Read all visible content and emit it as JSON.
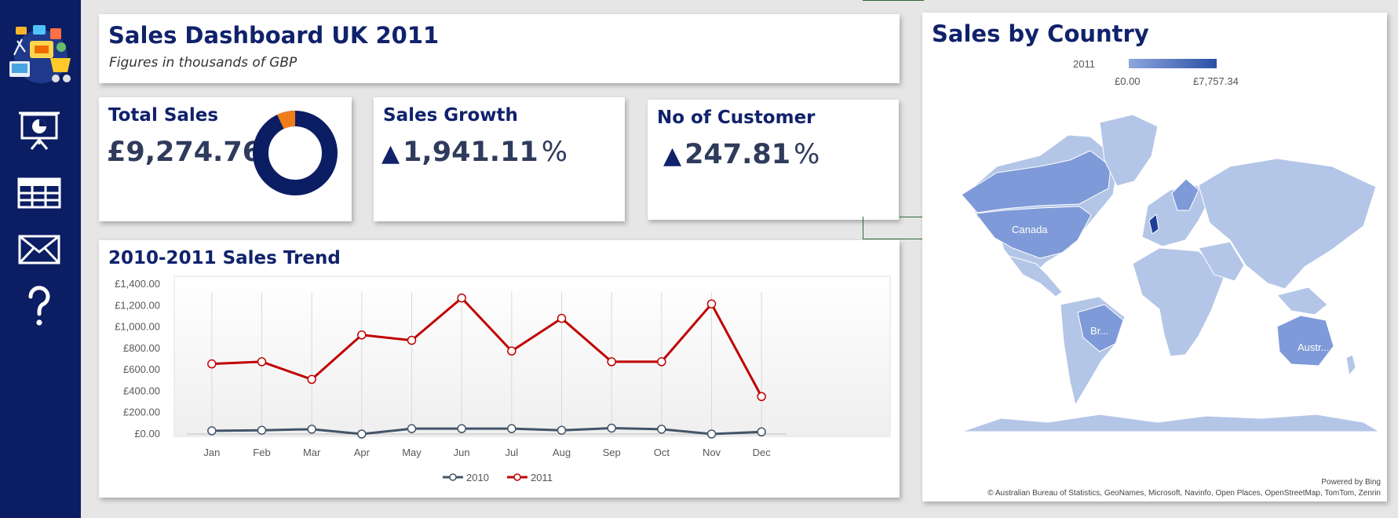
{
  "sidebar": {
    "logo_icon": "sales-illustration-icon",
    "items": [
      {
        "icon": "presentation-chart-icon"
      },
      {
        "icon": "table-grid-icon"
      },
      {
        "icon": "envelope-icon"
      },
      {
        "icon": "question-mark-icon"
      }
    ]
  },
  "header": {
    "title": "Sales Dashboard UK 2011",
    "subtitle": "Figures in thousands of GBP"
  },
  "kpis": {
    "total_sales": {
      "label": "Total Sales",
      "value": "£9,274.76",
      "donut_share": 0.07,
      "colors": {
        "main": "#0b1d63",
        "highlight": "#f07c1a"
      }
    },
    "sales_growth": {
      "label": "Sales Growth",
      "arrow": "▲",
      "value": "1,941.11",
      "suffix": "%"
    },
    "customers": {
      "label": "No of Customer",
      "arrow": "▲",
      "value": "247.81",
      "suffix": "%"
    }
  },
  "trend": {
    "title": "2010-2011 Sales Trend"
  },
  "chart_data": {
    "type": "line",
    "title": "2010-2011 Sales Trend",
    "xlabel": "",
    "ylabel": "",
    "categories": [
      "Jan",
      "Feb",
      "Mar",
      "Apr",
      "May",
      "Jun",
      "Jul",
      "Aug",
      "Sep",
      "Oct",
      "Nov",
      "Dec"
    ],
    "ylim": [
      0,
      1400
    ],
    "yticks": [
      "£0.00",
      "£200.00",
      "£400.00",
      "£600.00",
      "£800.00",
      "£1,000.00",
      "£1,200.00",
      "£1,400.00"
    ],
    "grid": "vertical",
    "legend_position": "bottom",
    "series": [
      {
        "name": "2010",
        "color": "#44546a",
        "values": [
          30,
          35,
          45,
          0,
          50,
          50,
          50,
          35,
          55,
          45,
          0,
          20
        ]
      },
      {
        "name": "2011",
        "color": "#c00000",
        "values": [
          655,
          675,
          510,
          925,
          875,
          1270,
          775,
          1080,
          675,
          675,
          1215,
          350
        ]
      }
    ]
  },
  "map": {
    "title": "Sales by Country",
    "legend_year": "2011",
    "legend_min": "£0.00",
    "legend_max": "£7,757.34",
    "labels": {
      "canada": "Canada",
      "brazil": "Br...",
      "australia": "Austr..."
    },
    "powered_by": "Powered by Bing",
    "credit": "© Australian Bureau of Statistics, GeoNames, Microsoft, Navinfo, Open Places, OpenStreetMap, TomTom, Zenrin",
    "colors": {
      "light": "#b4c6e7",
      "mid": "#7f9ad8",
      "dark": "#203f9a"
    }
  }
}
